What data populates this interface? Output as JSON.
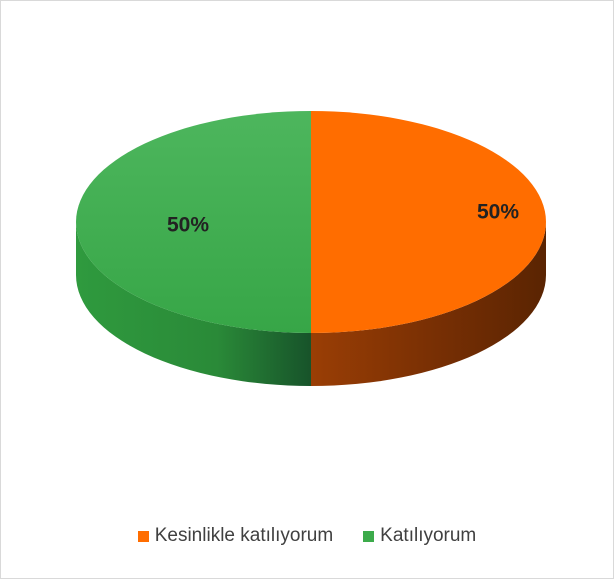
{
  "chart_data": {
    "type": "pie",
    "title": "",
    "categories": [
      "Kesinlikle katılıyorum",
      "Katılıyorum"
    ],
    "values": [
      50,
      50
    ],
    "data_labels": [
      "50%",
      "50%"
    ],
    "colors": [
      "#ff6d00",
      "#3cab4b"
    ],
    "legend_position": "bottom",
    "style": "3d"
  },
  "legend": {
    "items": [
      {
        "label": "Kesinlikle katılıyorum",
        "color": "#ff6d00"
      },
      {
        "label": "Katılıyorum",
        "color": "#3cab4b"
      }
    ]
  }
}
